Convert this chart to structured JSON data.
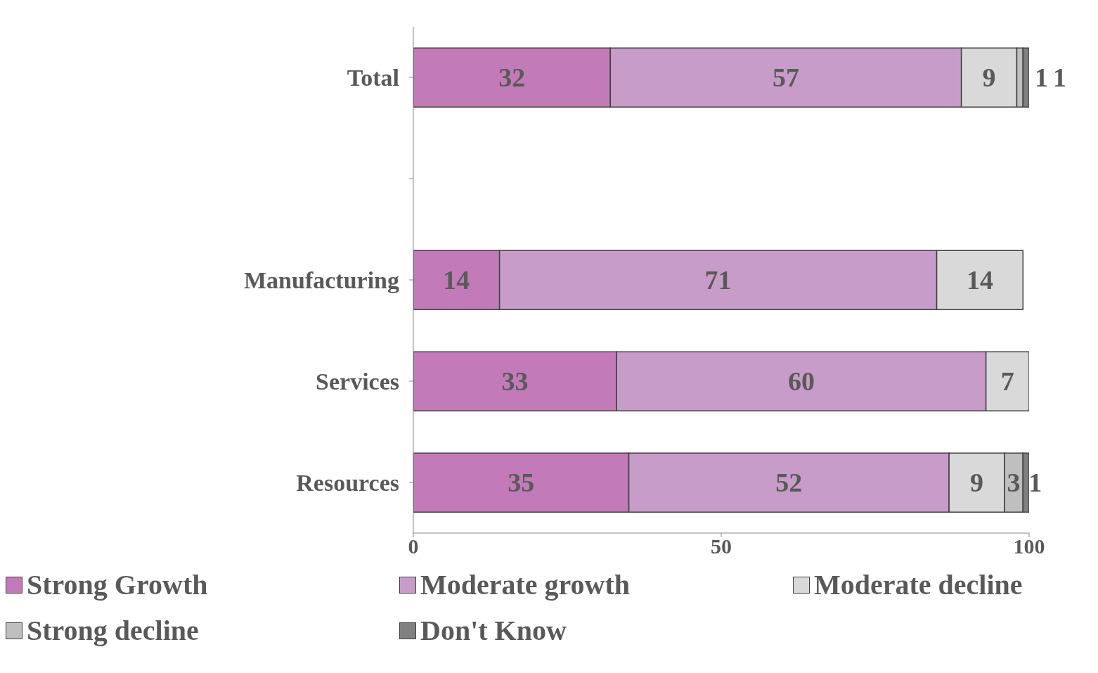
{
  "chart_data": {
    "type": "bar",
    "orientation": "horizontal",
    "stacked": true,
    "categories": [
      "Total",
      null,
      "Manufacturing",
      "Services",
      "Resources"
    ],
    "series": [
      {
        "name": "Strong Growth",
        "color": "#c27bb8",
        "values": [
          32,
          null,
          14,
          33,
          35
        ]
      },
      {
        "name": "Moderate growth",
        "color": "#c89cc8",
        "values": [
          57,
          null,
          71,
          60,
          52
        ]
      },
      {
        "name": "Moderate decline",
        "color": "#d9d9d9",
        "values": [
          9,
          null,
          14,
          7,
          9
        ]
      },
      {
        "name": "Strong decline",
        "color": "#bfbfbf",
        "values": [
          1,
          null,
          null,
          null,
          3
        ]
      },
      {
        "name": "Don't Know",
        "color": "#808080",
        "values": [
          1,
          null,
          null,
          null,
          1
        ]
      }
    ],
    "xlim": [
      0,
      100
    ],
    "xticks": [
      0,
      50,
      100
    ],
    "grid": false,
    "legend": "bottom",
    "data_labels": true
  }
}
